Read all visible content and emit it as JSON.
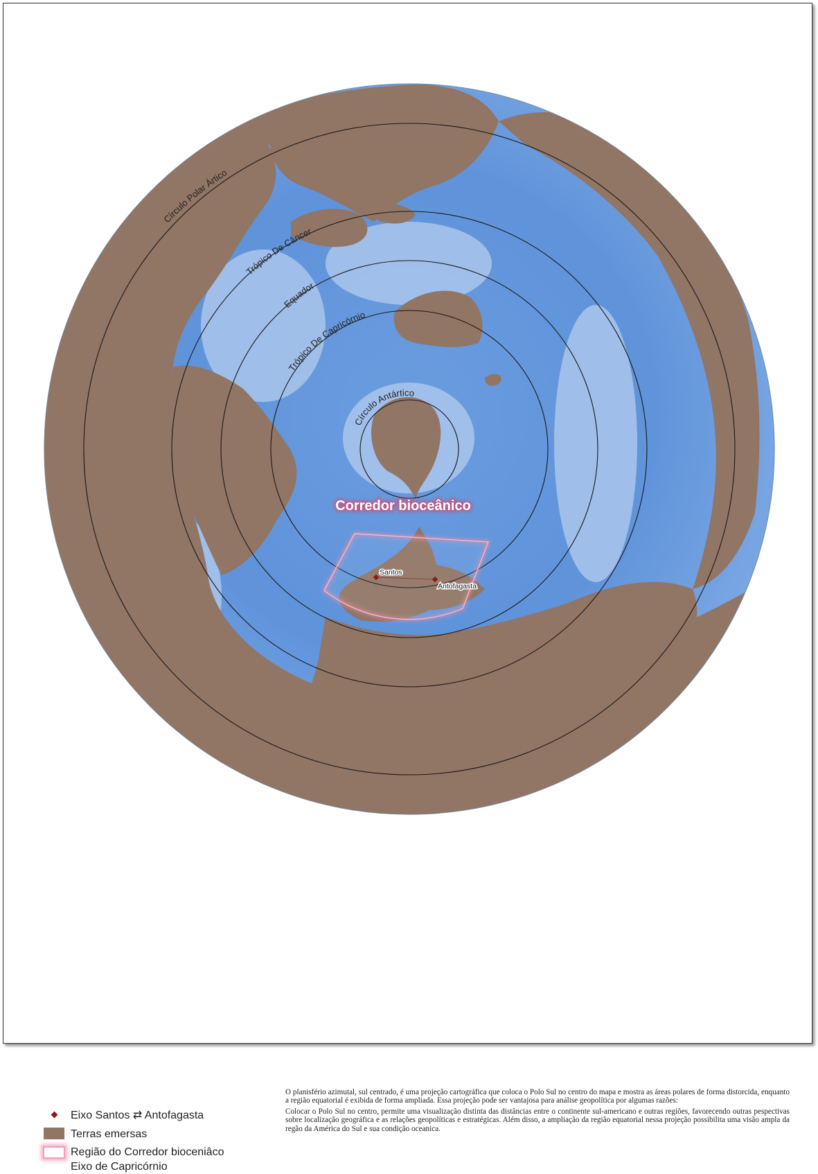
{
  "map": {
    "projection_note": "azimutal, sul centrado",
    "circles": [
      {
        "name": "Círculo Polar Ártico",
        "label": "Círculo Polar Ártico"
      },
      {
        "name": "Trópico De Câncer",
        "label": "Trópico De Câncer"
      },
      {
        "name": "Equador",
        "label": "Equador"
      },
      {
        "name": "Trópico De Capricórnio",
        "label": "Trópico De Capricórnio"
      },
      {
        "name": "Círculo Antártico",
        "label": "Círculo Antártico"
      }
    ],
    "corridor_title": "Corredor bioceânico",
    "points": [
      {
        "name": "Santos",
        "label": "Santos"
      },
      {
        "name": "Antofagasta",
        "label": "Antofagasta"
      }
    ],
    "colors": {
      "ocean_deep": "#5b8fd6",
      "ocean_shallow": "#b6cfee",
      "land": "#917565",
      "corridor": "#f08ca8",
      "point": "#8b1a1a"
    }
  },
  "legend": {
    "axis_label": "Eixo Santos ⇄ Antofagasta",
    "land_label": "Terras emersas",
    "corridor_label_1": "Região do Corredor bioceniâco",
    "corridor_label_2": "Eixo de Capricórnio"
  },
  "description": {
    "p1": "O planisfério azimutal, sul centrado, é uma projeção cartográfica que coloca o Polo Sul no centro do mapa e mostra as áreas polares de forma distorcida, enquanto a região equatorial é exibida de forma ampliada. Essa projeção pode ser vantajosa para análise geopolítica por algumas razões:",
    "p2": "Colocar o Polo Sul no centro, permite uma visualização distinta das distâncias entre o continente sul-americano e outras regiões, favorecendo outras pespectivas sobre localização geográfica e as relações geopolíticas e estratégicas. Além disso, a ampliação da região equatorial nessa projeção possibilita uma visão ampla da regão da América do Sul e sua condição oceanica."
  }
}
